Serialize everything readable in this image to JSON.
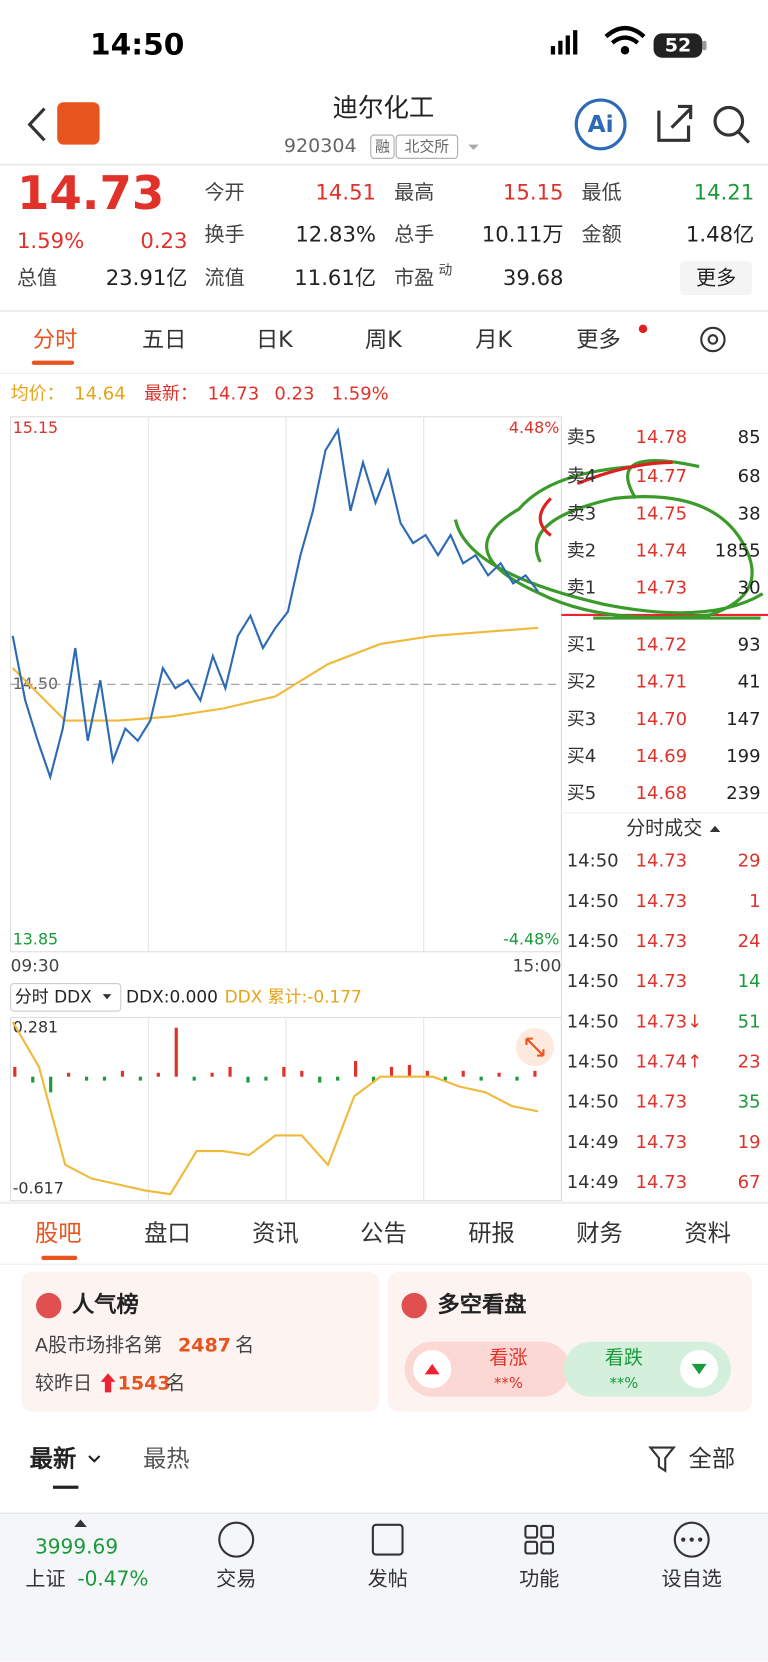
{
  "status_bar": {
    "time": "14:50",
    "battery": "52"
  },
  "header": {
    "name": "迪尔化工",
    "code": "920304",
    "tags": [
      "融",
      "北交所"
    ],
    "ai": "Ai"
  },
  "quote": {
    "price": "14.73",
    "change_pct": "1.59%",
    "change": "0.23",
    "fields": [
      {
        "label": "今开",
        "value": "14.51"
      },
      {
        "label": "最高",
        "value": "15.15"
      },
      {
        "label": "最低",
        "value": "14.21"
      },
      {
        "label": "换手",
        "value": "12.83%"
      },
      {
        "label": "总手",
        "value": "10.11万"
      },
      {
        "label": "金额",
        "value": "1.48亿"
      },
      {
        "label": "总值",
        "value": "23.91亿"
      },
      {
        "label": "流值",
        "value": "11.61亿"
      },
      {
        "label": "市盈",
        "sup": "动",
        "value": "39.68"
      }
    ],
    "more": "更多"
  },
  "chart_tabs": [
    "分时",
    "五日",
    "日K",
    "周K",
    "月K",
    "更多"
  ],
  "info_line": {
    "avg_label": "均价：",
    "avg": "14.64",
    "last_label": "最新：",
    "last": "14.73",
    "change": "0.23",
    "change_pct": "1.59%"
  },
  "chart_data": [
    {
      "type": "line",
      "ylim": [
        13.85,
        15.15
      ],
      "yticks": [
        15.15,
        {
          "value": 14.5,
          "label": "14.50"
        },
        13.85
      ],
      "right_labels": [
        "4.48%",
        "-4.48%"
      ],
      "x_labels": [
        "09:30",
        "15:00"
      ],
      "series": [
        {
          "name": "price",
          "color": "#2d6ab5",
          "values": [
            14.62,
            14.46,
            14.36,
            14.27,
            14.39,
            14.59,
            14.36,
            14.51,
            14.31,
            14.39,
            14.36,
            14.41,
            14.54,
            14.49,
            14.51,
            14.46,
            14.57,
            14.49,
            14.62,
            14.67,
            14.59,
            14.64,
            14.68,
            14.82,
            14.93,
            15.08,
            15.13,
            14.93,
            15.05,
            14.95,
            15.03,
            14.9,
            14.85,
            14.87,
            14.82,
            14.87,
            14.8,
            14.82,
            14.77,
            14.8,
            14.75,
            14.77,
            14.73
          ]
        },
        {
          "name": "avg",
          "color": "#f0b93a",
          "values": [
            14.54,
            14.41,
            14.41,
            14.42,
            14.44,
            14.47,
            14.55,
            14.6,
            14.62,
            14.63,
            14.64
          ]
        }
      ]
    },
    {
      "type": "ddx",
      "selector": "分时 DDX",
      "ddx_label": "DDX:0.000",
      "cum_label": "DDX 累计:-0.177",
      "ylim": [
        -0.617,
        0.281
      ],
      "yticks": [
        0.281,
        -0.617
      ],
      "bars": [
        0.05,
        -0.03,
        -0.08,
        0.02,
        -0.02,
        -0.02,
        0.03,
        -0.02,
        0.02,
        0.25,
        -0.02,
        0.02,
        0.05,
        -0.03,
        -0.02,
        0.05,
        0.03,
        -0.03,
        -0.02,
        0.08,
        -0.03,
        0.05,
        0.06,
        0.03,
        -0.02,
        0.03,
        -0.02,
        0.02,
        -0.02,
        0.03
      ],
      "series": [
        {
          "name": "DDX累计",
          "color": "#f0b93a",
          "values": [
            0.28,
            0.05,
            -0.45,
            -0.52,
            -0.55,
            -0.58,
            -0.6,
            -0.38,
            -0.38,
            -0.4,
            -0.3,
            -0.3,
            -0.45,
            -0.1,
            0.0,
            0.0,
            0.0,
            -0.05,
            -0.08,
            -0.15,
            -0.177
          ]
        }
      ]
    }
  ],
  "order_book": {
    "sells": [
      {
        "label": "卖5",
        "price": "14.78",
        "volume": "85"
      },
      {
        "label": "卖4",
        "price": "14.77",
        "volume": "68"
      },
      {
        "label": "卖3",
        "price": "14.75",
        "volume": "38"
      },
      {
        "label": "卖2",
        "price": "14.74",
        "volume": "1855"
      },
      {
        "label": "卖1",
        "price": "14.73",
        "volume": "30"
      }
    ],
    "buys": [
      {
        "label": "买1",
        "price": "14.72",
        "volume": "93"
      },
      {
        "label": "买2",
        "price": "14.71",
        "volume": "41"
      },
      {
        "label": "买3",
        "price": "14.70",
        "volume": "147"
      },
      {
        "label": "买4",
        "price": "14.69",
        "volume": "199"
      },
      {
        "label": "买5",
        "price": "14.68",
        "volume": "239"
      }
    ]
  },
  "trades": {
    "title": "分时成交",
    "rows": [
      {
        "time": "14:50",
        "price": "14.73",
        "volume": "29",
        "side": "buy"
      },
      {
        "time": "14:50",
        "price": "14.73",
        "volume": "1",
        "side": "buy"
      },
      {
        "time": "14:50",
        "price": "14.73",
        "volume": "24",
        "side": "buy"
      },
      {
        "time": "14:50",
        "price": "14.73",
        "volume": "14",
        "side": "sell"
      },
      {
        "time": "14:50",
        "price": "14.73↓",
        "volume": "51",
        "side": "sell"
      },
      {
        "time": "14:50",
        "price": "14.74↑",
        "volume": "23",
        "side": "buy"
      },
      {
        "time": "14:50",
        "price": "14.73",
        "volume": "35",
        "side": "sell"
      },
      {
        "time": "14:49",
        "price": "14.73",
        "volume": "19",
        "side": "buy"
      },
      {
        "time": "14:49",
        "price": "14.73",
        "volume": "67",
        "side": "buy"
      }
    ]
  },
  "section_tabs": [
    "股吧",
    "盘口",
    "资讯",
    "公告",
    "研报",
    "财务",
    "资料"
  ],
  "cards": {
    "popularity": {
      "title": "人气榜",
      "rank_prefix": "A股市场排名第",
      "rank": "2487",
      "rank_suffix": "名",
      "delta_prefix": "较昨日",
      "delta": "1543",
      "delta_suffix": "名"
    },
    "sentiment": {
      "title": "多空看盘",
      "up": "看涨",
      "up_pct": "**%",
      "down": "看跌",
      "down_pct": "**%"
    }
  },
  "filters": {
    "latest": "最新",
    "hot": "最热",
    "all": "全部"
  },
  "bottom_nav": {
    "index_value": "3999.69",
    "index_name": "上证",
    "index_change": "-0.47%",
    "items": [
      "交易",
      "发帖",
      "功能",
      "设自选"
    ]
  }
}
